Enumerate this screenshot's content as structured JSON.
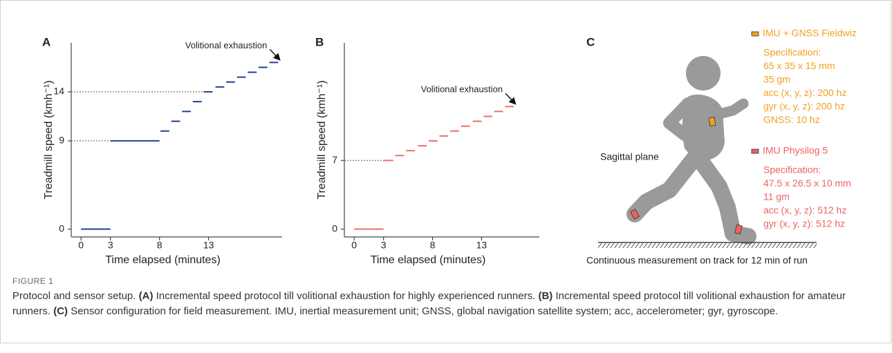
{
  "chart_data": [
    {
      "type": "step",
      "label": "A",
      "x_label": "Time elapsed (minutes)",
      "y_label": "Treadmill speed (kmh⁻¹)",
      "x": [
        0,
        3,
        8.1,
        9.2,
        10.3,
        11.4,
        12.5,
        13.7,
        14.8,
        15.9,
        17.0,
        18.1,
        19.2
      ],
      "x_end": [
        3,
        8,
        9.0,
        10.1,
        11.2,
        12.3,
        13.4,
        14.6,
        15.7,
        16.8,
        17.9,
        19.0,
        20.1
      ],
      "values": [
        0,
        9,
        10,
        11,
        12,
        13,
        14,
        14.5,
        15,
        15.5,
        16,
        16.5,
        17
      ],
      "color": "#1f3f8f",
      "xlim": [
        -1,
        20.5
      ],
      "ylim": [
        -0.8,
        19
      ],
      "xticks": [
        0,
        3,
        8,
        13
      ],
      "yticks": [
        0,
        9,
        14
      ],
      "annotation": "Volitional exhaustion"
    },
    {
      "type": "step",
      "label": "B",
      "x_label": "Time elapsed (minutes)",
      "y_label": "Treadmill speed (kmh⁻¹)",
      "x": [
        0,
        3.1,
        4.2,
        5.3,
        6.5,
        7.6,
        8.7,
        9.8,
        10.9,
        12.1,
        13.2,
        14.3,
        15.4
      ],
      "x_end": [
        3,
        4.0,
        5.1,
        6.2,
        7.4,
        8.5,
        9.6,
        10.7,
        11.8,
        13.0,
        14.1,
        15.2,
        16.3
      ],
      "values": [
        0,
        7,
        7.5,
        8,
        8.5,
        9,
        9.5,
        10,
        10.5,
        11,
        11.5,
        12,
        12.5
      ],
      "color": "#f06b6b",
      "xlim": [
        -1,
        18.9
      ],
      "ylim": [
        -0.8,
        19
      ],
      "xticks": [
        0,
        3,
        8,
        13
      ],
      "yticks": [
        0,
        7
      ],
      "annotation": "Volitional exhaustion"
    }
  ],
  "diagram": {
    "label": "C",
    "plane_label": "Sagittal plane",
    "ground_label": "Continuous measurement on track for 12 min of run",
    "sensors": [
      {
        "name": "IMU + GNSS Fieldwiz",
        "color": "#f0a020",
        "lines": [
          "Specification:",
          "65 x 35 x 15 mm",
          "35 gm",
          "acc (x, y, z): 200 hz",
          "gyr (x, y, z): 200 hz",
          "GNSS: 10 hz"
        ]
      },
      {
        "name": "IMU Physilog 5",
        "color": "#f06060",
        "lines": [
          "Specification:",
          "47.5 x 26.5 x 10 mm",
          "11 gm",
          "acc (x, y, z): 512 hz",
          "gyr (x, y, z): 512 hz"
        ]
      }
    ]
  },
  "caption": {
    "label": "FIGURE 1",
    "lead": "Protocol and sensor setup.",
    "items": [
      {
        "tag": "(A)",
        "text": "Incremental speed protocol till volitional exhaustion for highly experienced runners."
      },
      {
        "tag": "(B)",
        "text": "Incremental speed protocol till volitional exhaustion for amateur runners."
      },
      {
        "tag": "(C)",
        "text": "Sensor configuration for field measurement."
      }
    ],
    "tail": "IMU, inertial measurement unit; GNSS, global navigation satellite system; acc, accelerometer; gyr, gyroscope."
  }
}
